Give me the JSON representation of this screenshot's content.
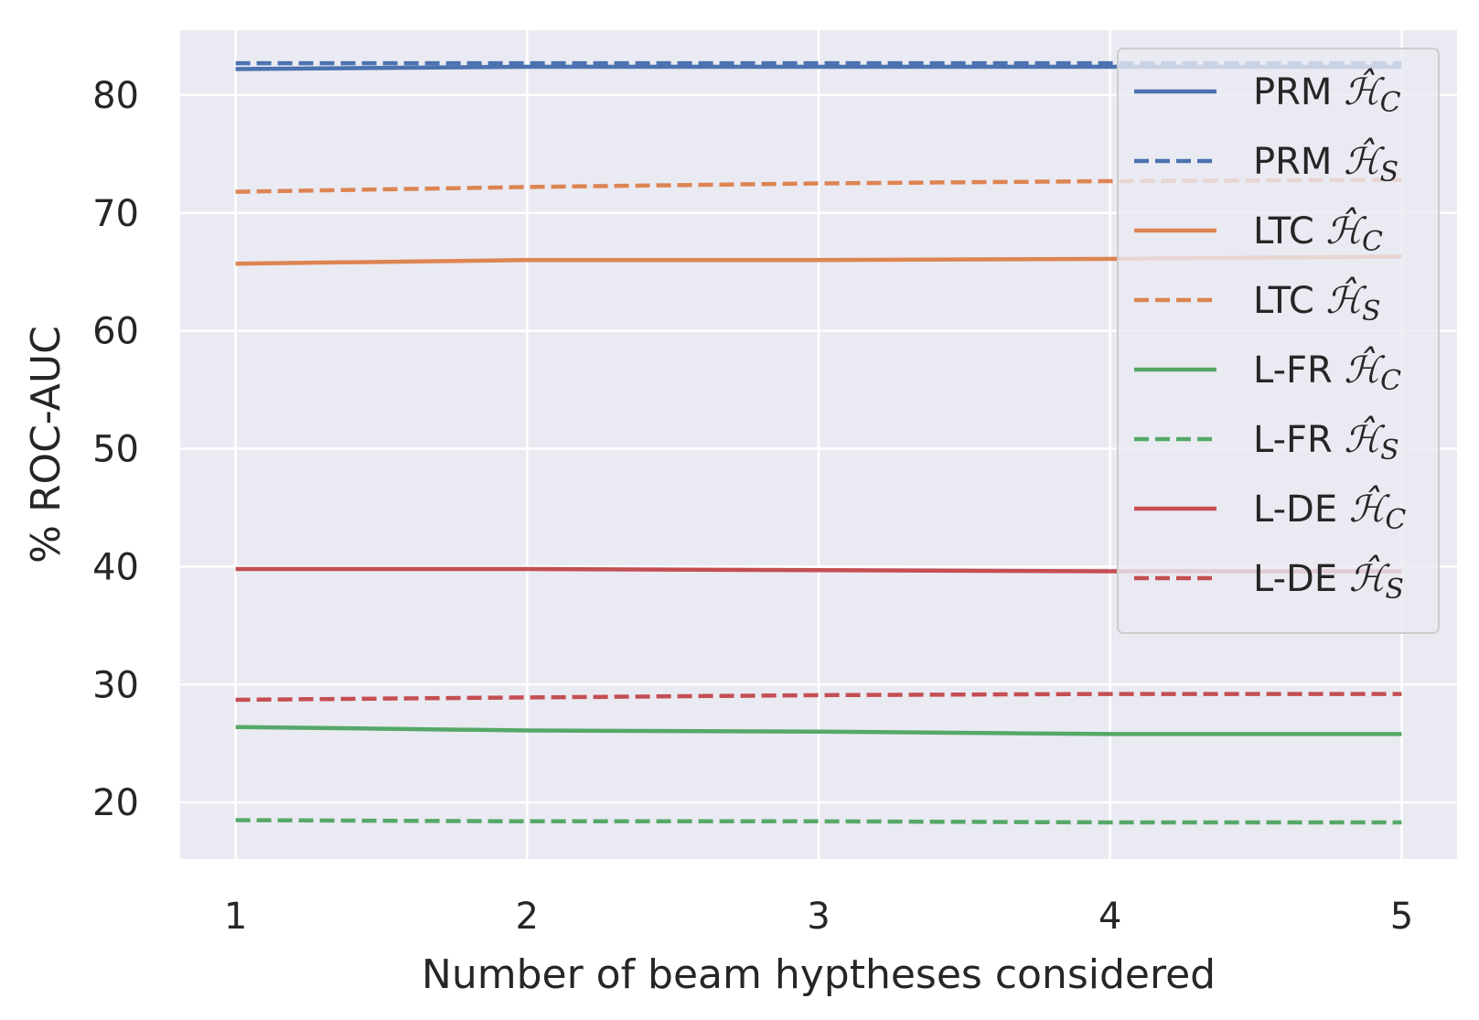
{
  "chart_data": {
    "type": "line",
    "xlabel": "Number of beam hyptheses considered",
    "ylabel": "% ROC-AUC",
    "x": [
      1,
      2,
      3,
      4,
      5
    ],
    "xticks": [
      "1",
      "2",
      "3",
      "4",
      "5"
    ],
    "yticks": [
      "20",
      "30",
      "40",
      "50",
      "60",
      "70",
      "80"
    ],
    "xlim": [
      0.81,
      5.19
    ],
    "ylim": [
      15.2,
      85.5
    ],
    "grid": true,
    "legend_position": "top-right",
    "series": [
      {
        "name": "PRM",
        "sub": "C",
        "color": "#4c72b0",
        "dashed": false,
        "values": [
          82.2,
          82.4,
          82.4,
          82.4,
          82.4
        ]
      },
      {
        "name": "PRM",
        "sub": "S",
        "color": "#4c72b0",
        "dashed": true,
        "values": [
          82.7,
          82.7,
          82.7,
          82.7,
          82.7
        ]
      },
      {
        "name": "LTC",
        "sub": "C",
        "color": "#dd8452",
        "dashed": false,
        "values": [
          65.7,
          66.0,
          66.0,
          66.1,
          66.3
        ]
      },
      {
        "name": "LTC",
        "sub": "S",
        "color": "#dd8452",
        "dashed": true,
        "values": [
          71.8,
          72.2,
          72.5,
          72.7,
          72.8
        ]
      },
      {
        "name": "L-FR",
        "sub": "C",
        "color": "#55a868",
        "dashed": false,
        "values": [
          26.4,
          26.1,
          26.0,
          25.8,
          25.8
        ]
      },
      {
        "name": "L-FR",
        "sub": "S",
        "color": "#55a868",
        "dashed": true,
        "values": [
          18.5,
          18.4,
          18.4,
          18.3,
          18.3
        ]
      },
      {
        "name": "L-DE",
        "sub": "C",
        "color": "#c44e52",
        "dashed": false,
        "values": [
          39.8,
          39.8,
          39.7,
          39.6,
          39.6
        ]
      },
      {
        "name": "L-DE",
        "sub": "S",
        "color": "#c44e52",
        "dashed": true,
        "values": [
          28.7,
          28.9,
          29.1,
          29.2,
          29.2
        ]
      }
    ]
  }
}
